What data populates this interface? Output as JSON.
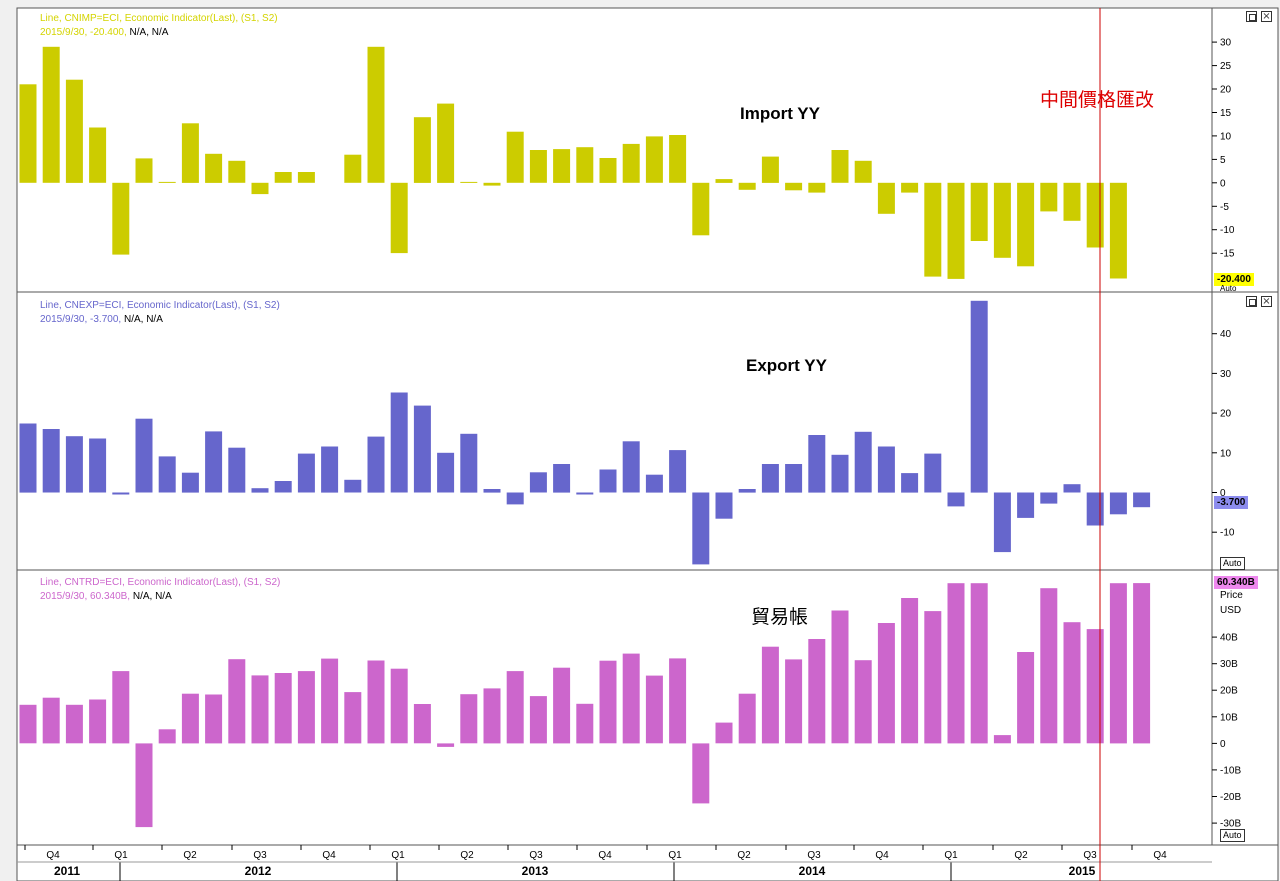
{
  "colors": {
    "import": "#cccc00",
    "export": "#6666cc",
    "trade": "#cc66cc",
    "marker_line": "#cc0000"
  },
  "panels": [
    {
      "id": "import",
      "legend_line1": "Line, CNIMP=ECI, Economic Indicator(Last), (S1, S2)",
      "legend_value": "2015/9/30, -20.400,",
      "legend_na": "N/A, N/A",
      "annotation": "Import YY",
      "last_value_label": "-20.400",
      "axis_extra_label": "Auto"
    },
    {
      "id": "export",
      "legend_line1": "Line, CNEXP=ECI, Economic Indicator(Last), (S1, S2)",
      "legend_value": "2015/9/30, -3.700,",
      "legend_na": "N/A, N/A",
      "annotation": "Export YY",
      "last_value_label": "-3.700",
      "axis_extra_label": "Auto"
    },
    {
      "id": "trade",
      "legend_line1": "Line, CNTRD=ECI, Economic Indicator(Last), (S1, S2)",
      "legend_value": "2015/9/30, 60.340B,",
      "legend_na": "N/A, N/A",
      "annotation": "貿易帳",
      "last_value_label": "60.340B",
      "axis_title_1": "Price",
      "axis_title_2": "USD",
      "axis_extra_label": "Auto"
    }
  ],
  "marker_annotation": "中間價格匯改",
  "chart_data": [
    {
      "type": "bar",
      "name": "Import YY",
      "ylim": [
        -22,
        36
      ],
      "yticks": [
        30,
        25,
        20,
        15,
        10,
        5,
        0,
        -5,
        -10,
        -15
      ],
      "ytick_labels": [
        "30",
        "25",
        "20",
        "15",
        "10",
        "5",
        "0",
        "-5",
        "-10",
        "-15"
      ],
      "values": [
        21,
        29,
        22,
        11.8,
        -15.3,
        5.2,
        0.2,
        12.7,
        6.2,
        4.7,
        -2.4,
        2.3,
        2.3,
        null,
        6,
        29,
        -15,
        14,
        16.9,
        0.2,
        -0.6,
        10.9,
        7,
        7.2,
        7.6,
        5.3,
        8.3,
        9.9,
        10.2,
        -11.2,
        0.8,
        -1.5,
        5.6,
        -1.6,
        -2.1,
        7,
        4.7,
        -6.6,
        -2.1,
        -20,
        -20.5,
        -12.4,
        -16,
        -17.8,
        -6.1,
        -8.1,
        -13.8,
        -20.4
      ],
      "series": [
        {
          "values_ref": "values"
        }
      ]
    },
    {
      "type": "bar",
      "name": "Export YY",
      "ylim": [
        -18,
        49
      ],
      "yticks": [
        40,
        30,
        20,
        10,
        0,
        -10
      ],
      "ytick_labels": [
        "40",
        "30",
        "20",
        "10",
        "0",
        "-10"
      ],
      "values": [
        17.4,
        16,
        14.2,
        13.6,
        -0.5,
        18.6,
        9.1,
        5,
        15.4,
        11.3,
        1.1,
        2.9,
        9.8,
        11.6,
        3.2,
        14.1,
        25.2,
        21.9,
        10,
        14.8,
        0.9,
        -3,
        5.1,
        7.2,
        -0.5,
        5.8,
        12.9,
        4.5,
        10.7,
        -18.1,
        -6.6,
        0.9,
        7.2,
        7.2,
        14.5,
        9.5,
        15.3,
        11.6,
        4.9,
        9.8,
        -3.5,
        48.3,
        -15,
        -6.4,
        -2.8,
        2.1,
        -8.3,
        -5.5,
        -3.7
      ],
      "series": [
        {
          "values_ref": "values"
        }
      ]
    },
    {
      "type": "bar",
      "name": "貿易帳",
      "ylim": [
        -36,
        63
      ],
      "yticks": [
        40,
        30,
        20,
        10,
        0,
        -10,
        -20,
        -30
      ],
      "ytick_labels": [
        "40B",
        "30B",
        "20B",
        "10B",
        "0",
        "-10B",
        "-20B",
        "-30B"
      ],
      "values": [
        14.5,
        17.2,
        14.5,
        16.5,
        27.2,
        -31.5,
        5.3,
        18.7,
        18.4,
        31.7,
        25.6,
        26.5,
        27.2,
        31.9,
        19.3,
        31.2,
        28.1,
        14.8,
        -1.3,
        18.5,
        20.7,
        27.2,
        17.8,
        28.5,
        14.9,
        31.1,
        33.8,
        25.5,
        32,
        -22.6,
        7.8,
        18.7,
        36.4,
        31.6,
        39.3,
        50,
        31.3,
        45.3,
        54.7,
        49.8,
        60.3,
        60.3,
        3.1,
        34.4,
        58.4,
        45.6,
        43,
        60.3,
        60.34
      ],
      "series": [
        {
          "values_ref": "values"
        }
      ]
    }
  ],
  "x_axis": {
    "quarter_labels": [
      "Q4",
      "Q1",
      "Q2",
      "Q3",
      "Q4",
      "Q1",
      "Q2",
      "Q3",
      "Q4",
      "Q1",
      "Q2",
      "Q3",
      "Q4",
      "Q1",
      "Q2",
      "Q3",
      "Q4"
    ],
    "year_labels": [
      "2011",
      "2012",
      "2013",
      "2014",
      "2015"
    ]
  }
}
